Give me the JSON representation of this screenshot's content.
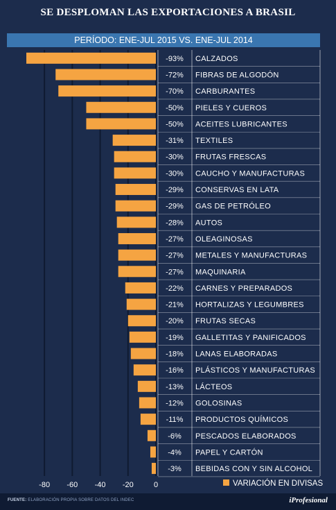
{
  "title": "SE DESPLOMAN LAS EXPORTACIONES A BRASIL",
  "subtitle": "PERÍODO: ENE-JUL 2015 VS. ENE-JUL 2014",
  "legend": "VARIACIÓN EN DIVISAS",
  "footer": {
    "source_label": "FUENTE:",
    "source_text": " ELABORACIÓN PROPIA SOBRE DATOS DEL INDEC",
    "brand": "iProfesional"
  },
  "colors": {
    "bar": "#f5a442",
    "background": "#1c2c4c",
    "header": "#3a76b0",
    "text": "#ffffff"
  },
  "chart_data": {
    "type": "bar",
    "orientation": "horizontal",
    "title": "SE DESPLOMAN LAS EXPORTACIONES A BRASIL",
    "subtitle": "PERÍODO: ENE-JUL 2015 VS. ENE-JUL 2014",
    "xlabel": "",
    "ylabel": "",
    "xlim": [
      -93,
      0
    ],
    "xticks": [
      -80,
      -60,
      -40,
      -20,
      0
    ],
    "grid": true,
    "legend_position": "bottom-right",
    "categories": [
      "CALZADOS",
      "FIBRAS DE ALGODÓN",
      "CARBURANTES",
      "PIELES Y CUEROS",
      "ACEITES LUBRICANTES",
      "TEXTILES",
      "FRUTAS FRESCAS",
      "CAUCHO Y MANUFACTURAS",
      "CONSERVAS EN LATA",
      "GAS DE PETRÓLEO",
      "AUTOS",
      "OLEAGINOSAS",
      "METALES Y MANUFACTURAS",
      "MAQUINARIA",
      "CARNES Y PREPARADOS",
      "HORTALIZAS Y LEGUMBRES",
      "FRUTAS SECAS",
      "GALLETITAS Y PANIFICADOS",
      "LANAS ELABORADAS",
      "PLÁSTICOS Y MANUFACTURAS",
      "LÁCTEOS",
      "GOLOSINAS",
      "PRODUCTOS QUÍMICOS",
      "PESCADOS ELABORADOS",
      "PAPEL Y CARTÓN",
      "BEBIDAS CON Y SIN ALCOHOL"
    ],
    "series": [
      {
        "name": "VARIACIÓN EN DIVISAS",
        "values": [
          -93,
          -72,
          -70,
          -50,
          -50,
          -31,
          -30,
          -30,
          -29,
          -29,
          -28,
          -27,
          -27,
          -27,
          -22,
          -21,
          -20,
          -19,
          -18,
          -16,
          -13,
          -12,
          -11,
          -6,
          -4,
          -3
        ],
        "labels": [
          "-93%",
          "-72%",
          "-70%",
          "-50%",
          "-50%",
          "-31%",
          "-30%",
          "-30%",
          "-29%",
          "-29%",
          "-28%",
          "-27%",
          "-27%",
          "-27%",
          "-22%",
          "-21%",
          "-20%",
          "-19%",
          "-18%",
          "-16%",
          "-13%",
          "-12%",
          "-11%",
          "-6%",
          "-4%",
          "-3%"
        ]
      }
    ]
  }
}
